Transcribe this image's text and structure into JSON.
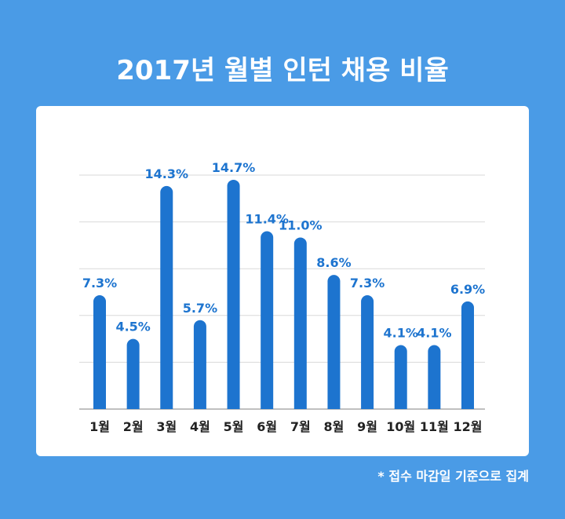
{
  "title": "2017년 월별 인턴 채용 비율",
  "footnote": "* 접수 마감일 기준으로 집계",
  "colors": {
    "background": "#4a9be6",
    "card": "#ffffff",
    "bar": "#1d74cf",
    "label": "#1d74cf",
    "grid": "#d9d9d9",
    "axis_text": "#222222"
  },
  "chart_data": {
    "type": "bar",
    "categories": [
      "1월",
      "2월",
      "3월",
      "4월",
      "5월",
      "6월",
      "7월",
      "8월",
      "9월",
      "10월",
      "11월",
      "12월"
    ],
    "values": [
      7.3,
      4.5,
      14.3,
      5.7,
      14.7,
      11.4,
      11.0,
      8.6,
      7.3,
      4.1,
      4.1,
      6.9
    ],
    "value_labels": [
      "7.3%",
      "4.5%",
      "14.3%",
      "5.7%",
      "14.7%",
      "11.4%",
      "11.0%",
      "8.6%",
      "7.3%",
      "4.1%",
      "4.1%",
      "6.9%"
    ],
    "title": "2017년 월별 인턴 채용 비율",
    "grid": true,
    "ylim": [
      0,
      15
    ]
  }
}
